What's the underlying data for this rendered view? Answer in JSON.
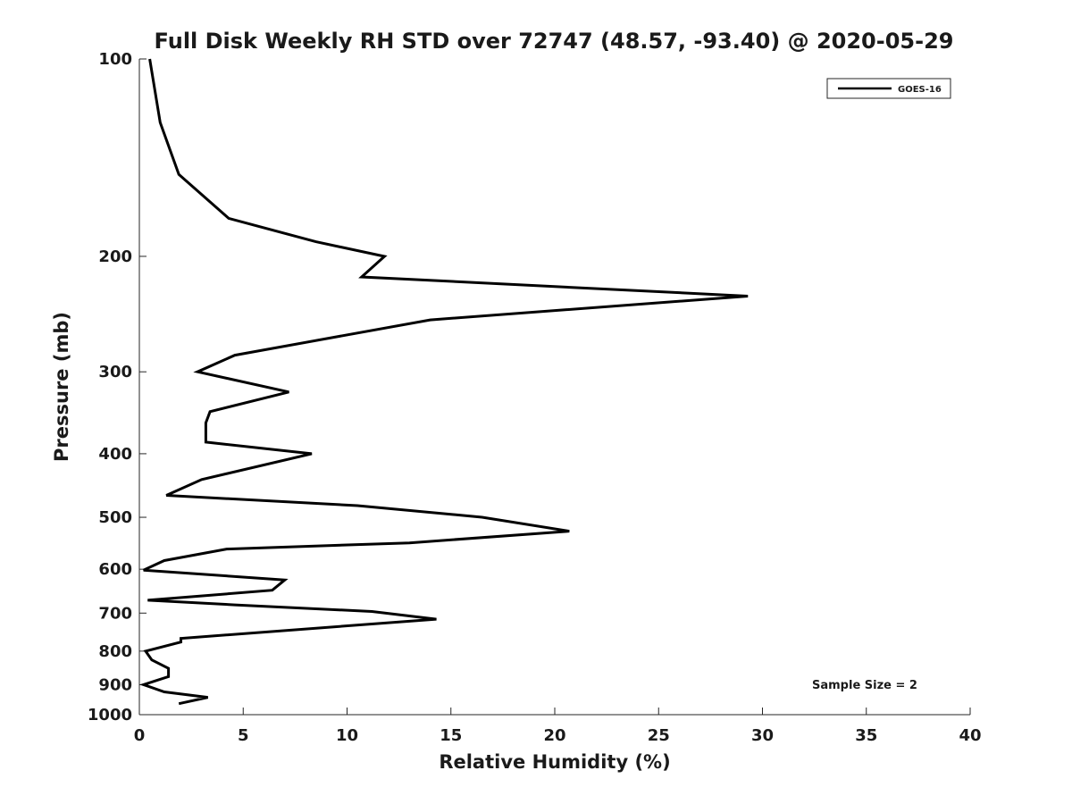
{
  "chart_data": {
    "type": "line",
    "title": "Full Disk Weekly RH STD over 72747 (48.57, -93.40) @ 2020-05-29",
    "xlabel": "Relative Humidity (%)",
    "ylabel": "Pressure (mb)",
    "xlim": [
      0,
      40
    ],
    "ylim": [
      100,
      1000
    ],
    "y_scale": "log",
    "y_reversed": true,
    "x_ticks": [
      0,
      5,
      10,
      15,
      20,
      25,
      30,
      35,
      40
    ],
    "y_ticks": [
      100,
      200,
      300,
      400,
      500,
      600,
      700,
      800,
      900,
      1000
    ],
    "grid": false,
    "legend_position": "top-right",
    "annotation": "Sample Size = 2",
    "series": [
      {
        "name": "GOES-16",
        "color": "#000000",
        "points": [
          [
            0.5,
            100
          ],
          [
            1.0,
            125
          ],
          [
            1.9,
            150
          ],
          [
            4.3,
            175
          ],
          [
            8.5,
            190
          ],
          [
            11.8,
            200
          ],
          [
            10.7,
            215
          ],
          [
            29.3,
            230
          ],
          [
            14.0,
            250
          ],
          [
            4.6,
            283
          ],
          [
            2.8,
            300
          ],
          [
            7.2,
            322
          ],
          [
            3.4,
            345
          ],
          [
            3.2,
            359
          ],
          [
            3.2,
            384
          ],
          [
            8.3,
            400
          ],
          [
            3.0,
            438
          ],
          [
            1.3,
            463
          ],
          [
            10.5,
            480
          ],
          [
            16.5,
            500
          ],
          [
            20.7,
            525
          ],
          [
            13.0,
            547
          ],
          [
            4.2,
            559
          ],
          [
            1.2,
            582
          ],
          [
            0.2,
            602
          ],
          [
            7.0,
            623
          ],
          [
            6.4,
            646
          ],
          [
            0.4,
            669
          ],
          [
            4.6,
            680
          ],
          [
            11.2,
            696
          ],
          [
            14.3,
            715
          ],
          [
            2.0,
            765
          ],
          [
            2.0,
            775
          ],
          [
            0.3,
            800
          ],
          [
            0.6,
            825
          ],
          [
            1.4,
            850
          ],
          [
            1.4,
            875
          ],
          [
            0.2,
            900
          ],
          [
            1.2,
            923
          ],
          [
            3.3,
            941
          ],
          [
            1.9,
            962
          ]
        ]
      }
    ]
  }
}
